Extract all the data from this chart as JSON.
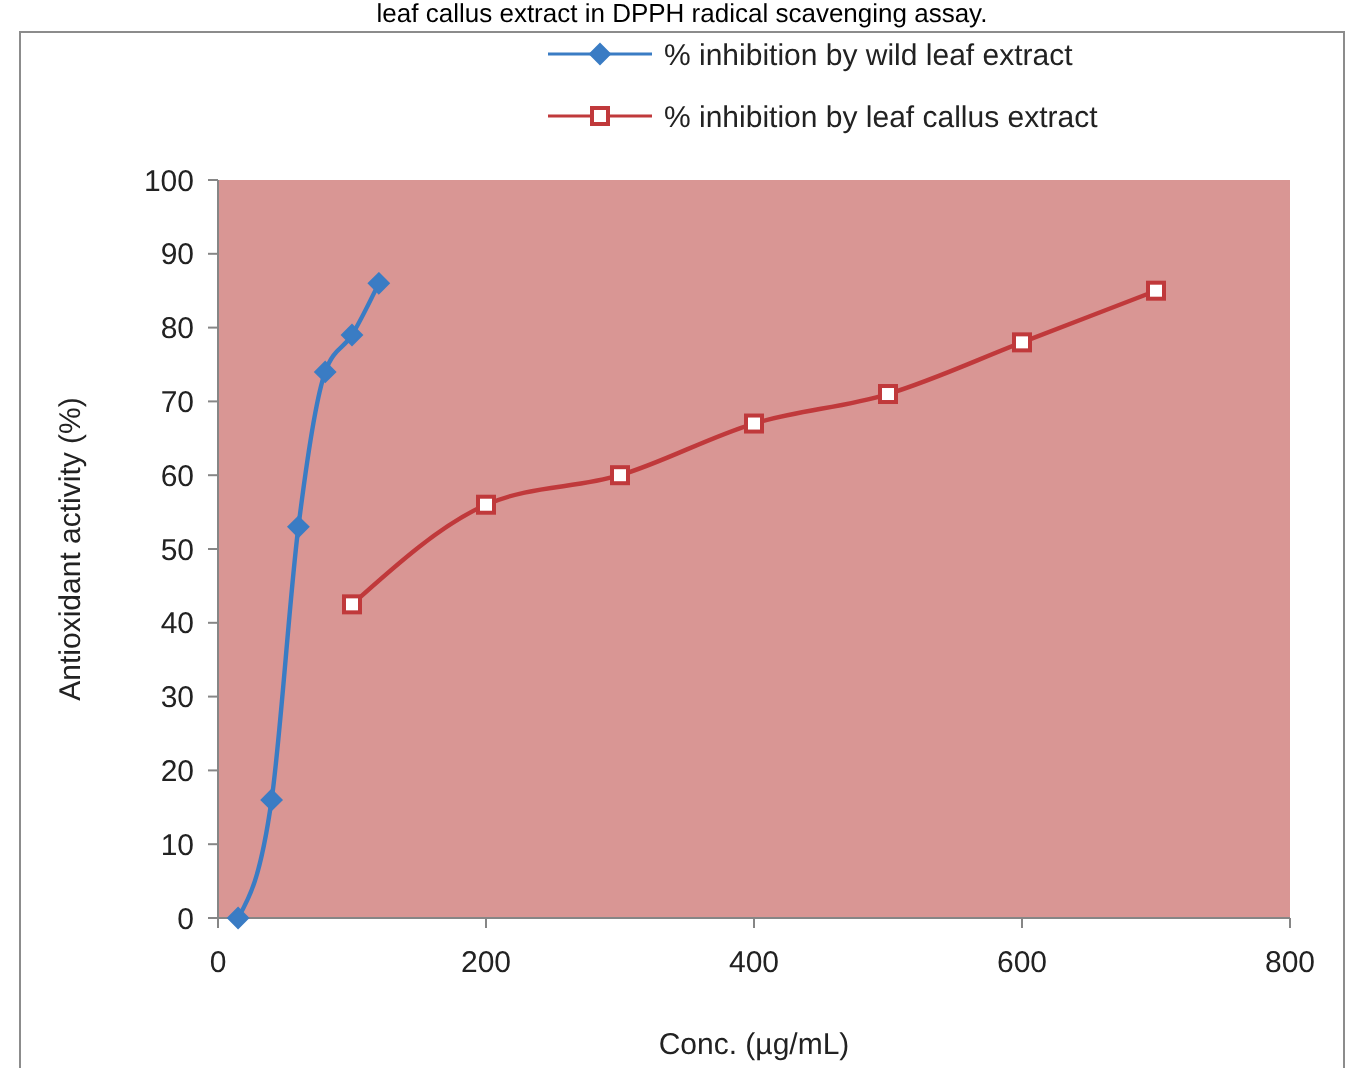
{
  "chart_data": {
    "type": "line",
    "title": "leaf callus extract in DPPH radical scavenging assay.",
    "xlabel": "Conc. (µg/mL)",
    "ylabel": "Antioxidant activity (%)",
    "series": [
      {
        "name": "% inhibition by wild leaf extract",
        "color": "#3a7cc4",
        "marker": "diamond",
        "x": [
          15,
          40,
          60,
          80,
          100,
          120
        ],
        "values": [
          0,
          16,
          53,
          74,
          79,
          86
        ]
      },
      {
        "name": "% inhibition by leaf callus extract",
        "color": "#c0393b",
        "marker": "square",
        "x": [
          100,
          200,
          300,
          400,
          500,
          600,
          700
        ],
        "values": [
          42.5,
          56,
          60,
          67,
          71,
          78,
          85
        ]
      }
    ],
    "xlim": [
      0,
      800
    ],
    "xticks": [
      0,
      200,
      400,
      600,
      800
    ],
    "ylim": [
      0,
      100
    ],
    "yticks": [
      0,
      10,
      20,
      30,
      40,
      50,
      60,
      70,
      80,
      90,
      100
    ],
    "grid": false,
    "legend": "top right"
  }
}
